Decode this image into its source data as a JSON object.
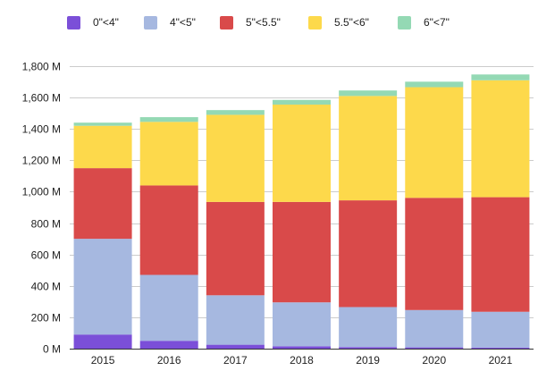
{
  "chart_data": {
    "type": "bar",
    "stacked": true,
    "categories": [
      "2015",
      "2016",
      "2017",
      "2018",
      "2019",
      "2020",
      "2021"
    ],
    "series": [
      {
        "name": "0\"<4\"",
        "color": "#7b4fd8",
        "values": [
          90,
          50,
          25,
          15,
          10,
          8,
          7
        ]
      },
      {
        "name": "4\"<5\"",
        "color": "#a6b8e0",
        "values": [
          610,
          420,
          315,
          280,
          255,
          238,
          228
        ]
      },
      {
        "name": "5\"<5.5\"",
        "color": "#d94a4a",
        "values": [
          450,
          570,
          595,
          640,
          680,
          715,
          730
        ]
      },
      {
        "name": "5.5\"<6\"",
        "color": "#fdd94b",
        "values": [
          270,
          405,
          555,
          620,
          665,
          705,
          745
        ]
      },
      {
        "name": "6\"<7\"",
        "color": "#94d9b4",
        "values": [
          20,
          30,
          30,
          30,
          35,
          35,
          37
        ]
      }
    ],
    "ylim": [
      0,
      1800
    ],
    "yticks": [
      0,
      200,
      400,
      600,
      800,
      1000,
      1200,
      1400,
      1600,
      1800
    ],
    "ytick_labels": [
      "0 M",
      "200 M",
      "400 M",
      "600 M",
      "800 M",
      "1,000 M",
      "1,200 M",
      "1,400 M",
      "1,600 M",
      "1,800 M"
    ],
    "title": "",
    "xlabel": "",
    "ylabel": "",
    "grid": true,
    "legend": "top"
  }
}
